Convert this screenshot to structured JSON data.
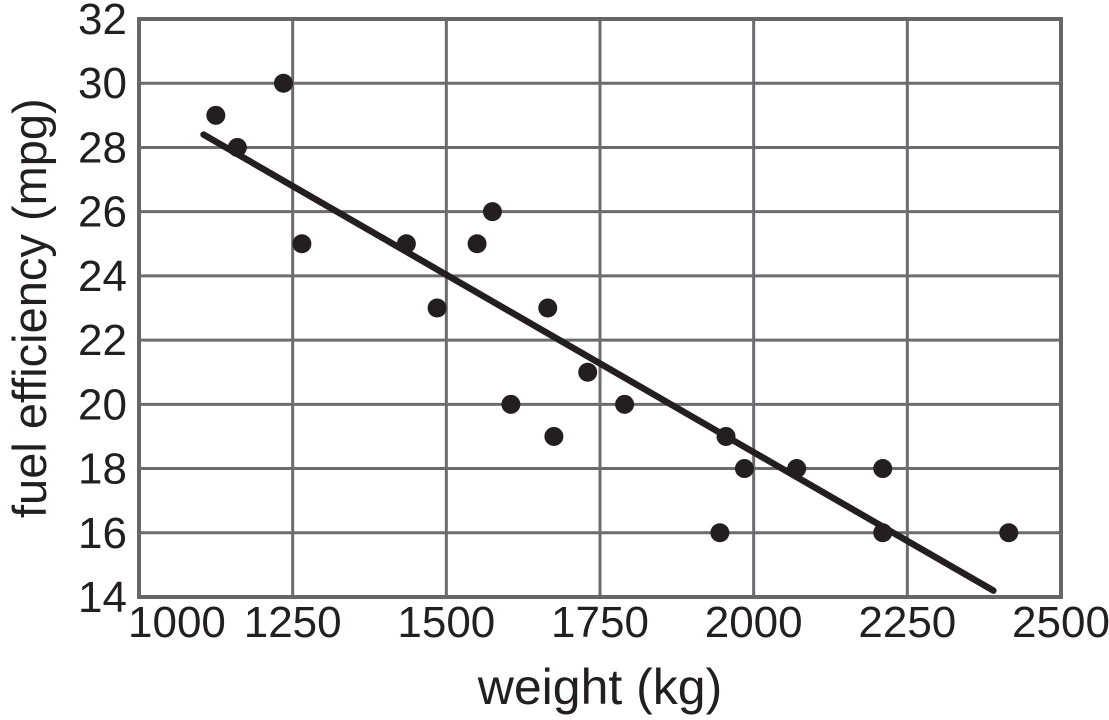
{
  "chart_data": {
    "type": "scatter",
    "title": "",
    "xlabel": "weight (kg)",
    "ylabel": "fuel efficiency (mpg)",
    "xlim": [
      1000,
      2500
    ],
    "ylim": [
      14,
      32
    ],
    "x_ticks": [
      1000,
      1250,
      1500,
      1750,
      2000,
      2250,
      2500
    ],
    "y_ticks": [
      14,
      16,
      18,
      20,
      22,
      24,
      26,
      28,
      30,
      32
    ],
    "grid": true,
    "legend": false,
    "points": [
      [
        1125,
        29
      ],
      [
        1160,
        28
      ],
      [
        1235,
        30
      ],
      [
        1265,
        25
      ],
      [
        1435,
        25
      ],
      [
        1485,
        23
      ],
      [
        1550,
        25
      ],
      [
        1575,
        26
      ],
      [
        1605,
        20
      ],
      [
        1665,
        23
      ],
      [
        1675,
        19
      ],
      [
        1730,
        21
      ],
      [
        1790,
        20
      ],
      [
        1945,
        16
      ],
      [
        1955,
        19
      ],
      [
        1985,
        18
      ],
      [
        2070,
        18
      ],
      [
        2210,
        18
      ],
      [
        2210,
        16
      ],
      [
        2415,
        16
      ]
    ],
    "trend_line": {
      "x_start": 1105,
      "y_start": 28.4,
      "x_end": 2390,
      "y_end": 14.2
    },
    "colors": {
      "points": "#231f20",
      "trend_line": "#231f20",
      "gridlines": "#6a6c70",
      "border": "#64666a",
      "text": "#231f20",
      "background": "#ffffff"
    }
  }
}
